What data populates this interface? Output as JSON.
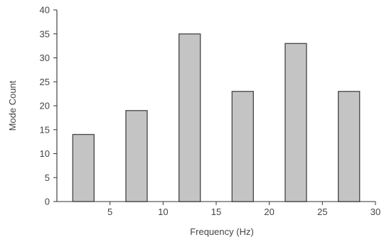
{
  "chart_data": {
    "type": "bar",
    "title": "",
    "xlabel": "Frequency  (Hz)",
    "ylabel": "Mode Count",
    "x": [
      2.5,
      7.5,
      12.5,
      17.5,
      22.5,
      27.5
    ],
    "values": [
      14,
      19,
      35,
      23,
      33,
      23
    ],
    "bin_width": 5,
    "xlim": [
      0,
      30
    ],
    "ylim": [
      0,
      40
    ],
    "xticks": [
      5,
      10,
      15,
      20,
      25,
      30
    ],
    "yticks": [
      0,
      5,
      10,
      15,
      20,
      25,
      30,
      35,
      40
    ],
    "grid": false,
    "legend": "none",
    "bar_color": "#c4c4c4",
    "bar_edge_color": "#444444"
  }
}
